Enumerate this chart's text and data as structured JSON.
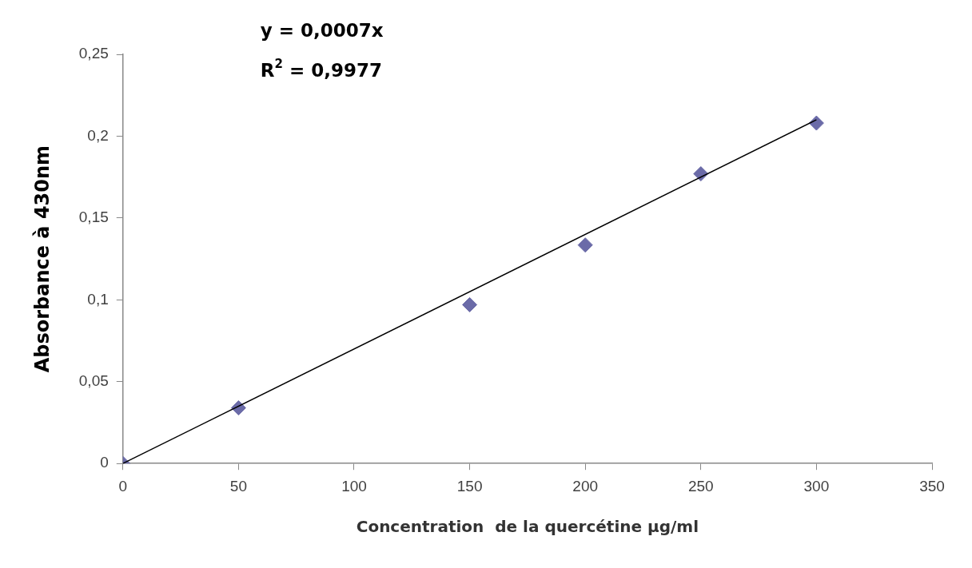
{
  "chart_data": {
    "type": "scatter",
    "xlabel": "Concentration  de la quercétine µg/ml",
    "ylabel": "Absorbance à 430nm",
    "annotations": [
      "y = 0,0007x",
      "R$^{2}$ = 0,9977"
    ],
    "series": [
      {
        "color": "#6b6ba8",
        "marker": "diamond",
        "x": [
          0,
          50,
          150,
          200,
          250,
          300
        ],
        "values": [
          0,
          0.034,
          0.097,
          0.1335,
          0.177,
          0.208
        ]
      },
      {
        "type": "line",
        "color": "#000000",
        "marker": "none",
        "x": [
          0,
          300
        ],
        "values": [
          0,
          0.21
        ]
      }
    ],
    "xlim": [
      0,
      350
    ],
    "xticks": [
      0,
      50,
      100,
      150,
      200,
      250,
      300,
      350
    ],
    "ylim": [
      0,
      0.25
    ],
    "yticks": [
      0,
      {
        "value": 0.05,
        "label": "0,05"
      },
      {
        "value": 0.1,
        "label": "0,1"
      },
      {
        "value": 0.15,
        "label": "0,15"
      },
      {
        "value": 0.2,
        "label": "0,2"
      },
      {
        "value": 0.25,
        "label": "0,25"
      }
    ],
    "grid": false,
    "legend": false
  }
}
